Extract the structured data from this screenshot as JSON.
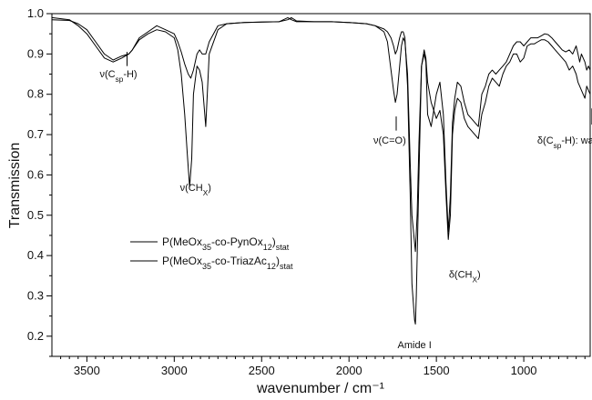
{
  "chart_data": {
    "type": "line",
    "xlabel": "wavenumber / cm⁻¹",
    "ylabel": "Transmission",
    "xlim": [
      3700,
      620
    ],
    "ylim": [
      0.15,
      1.0
    ],
    "x_reversed": true,
    "x_ticks": [
      3500,
      3000,
      2500,
      2000,
      1500,
      1000
    ],
    "y_ticks": [
      0.2,
      0.3,
      0.4,
      0.5,
      0.6,
      0.7,
      0.8,
      0.9,
      1.0
    ],
    "grid": false,
    "legend": "center-left",
    "series": [
      {
        "name": "P(MeOx35-co-PynOx12)stat",
        "label_parts": [
          "P(MeOx",
          "35",
          "-co-PynOx",
          "12",
          ")",
          "stat"
        ],
        "x": [
          3700,
          3600,
          3550,
          3500,
          3450,
          3400,
          3350,
          3300,
          3260,
          3240,
          3200,
          3150,
          3100,
          3050,
          3000,
          2980,
          2960,
          2940,
          2920,
          2905,
          2890,
          2870,
          2855,
          2840,
          2820,
          2800,
          2750,
          2700,
          2600,
          2500,
          2400,
          2350,
          2330,
          2300,
          2200,
          2100,
          2000,
          1900,
          1850,
          1800,
          1780,
          1760,
          1745,
          1735,
          1725,
          1710,
          1700,
          1690,
          1680,
          1665,
          1650,
          1640,
          1620,
          1610,
          1600,
          1585,
          1570,
          1560,
          1550,
          1530,
          1500,
          1480,
          1460,
          1445,
          1432,
          1420,
          1408,
          1395,
          1380,
          1360,
          1340,
          1320,
          1300,
          1280,
          1260,
          1240,
          1220,
          1200,
          1180,
          1160,
          1140,
          1120,
          1100,
          1080,
          1060,
          1040,
          1020,
          1000,
          980,
          960,
          940,
          920,
          900,
          880,
          860,
          840,
          820,
          800,
          780,
          760,
          740,
          720,
          700,
          690,
          680,
          670,
          660,
          650,
          640,
          630,
          620
        ],
        "y": [
          0.985,
          0.983,
          0.975,
          0.96,
          0.93,
          0.9,
          0.885,
          0.895,
          0.9,
          0.91,
          0.94,
          0.955,
          0.97,
          0.96,
          0.95,
          0.93,
          0.905,
          0.875,
          0.85,
          0.84,
          0.86,
          0.9,
          0.91,
          0.9,
          0.9,
          0.93,
          0.97,
          0.975,
          0.978,
          0.979,
          0.98,
          0.99,
          0.985,
          0.98,
          0.98,
          0.98,
          0.978,
          0.975,
          0.97,
          0.955,
          0.93,
          0.86,
          0.81,
          0.78,
          0.8,
          0.87,
          0.92,
          0.94,
          0.93,
          0.85,
          0.63,
          0.5,
          0.41,
          0.5,
          0.68,
          0.87,
          0.9,
          0.88,
          0.75,
          0.72,
          0.8,
          0.83,
          0.75,
          0.58,
          0.46,
          0.55,
          0.73,
          0.79,
          0.83,
          0.82,
          0.78,
          0.75,
          0.74,
          0.73,
          0.72,
          0.8,
          0.82,
          0.85,
          0.86,
          0.85,
          0.86,
          0.87,
          0.88,
          0.9,
          0.92,
          0.93,
          0.93,
          0.92,
          0.93,
          0.94,
          0.94,
          0.94,
          0.945,
          0.95,
          0.948,
          0.94,
          0.93,
          0.92,
          0.91,
          0.905,
          0.91,
          0.9,
          0.92,
          0.9,
          0.88,
          0.9,
          0.89,
          0.88,
          0.86,
          0.87,
          0.86
        ]
      },
      {
        "name": "P(MeOx35-co-TriazAc12)stat",
        "label_parts": [
          "P(MeOx",
          "35",
          "-co-TriazAc",
          "12",
          ")",
          "stat"
        ],
        "x": [
          3700,
          3600,
          3550,
          3500,
          3450,
          3400,
          3350,
          3300,
          3260,
          3240,
          3200,
          3150,
          3100,
          3050,
          3000,
          2980,
          2960,
          2940,
          2925,
          2912,
          2900,
          2890,
          2870,
          2855,
          2840,
          2820,
          2800,
          2750,
          2700,
          2600,
          2500,
          2400,
          2350,
          2330,
          2300,
          2200,
          2100,
          2000,
          1900,
          1850,
          1800,
          1780,
          1760,
          1745,
          1735,
          1725,
          1710,
          1700,
          1690,
          1680,
          1665,
          1650,
          1640,
          1625,
          1620,
          1615,
          1600,
          1585,
          1570,
          1560,
          1550,
          1530,
          1500,
          1480,
          1460,
          1445,
          1432,
          1420,
          1408,
          1395,
          1380,
          1360,
          1340,
          1320,
          1300,
          1280,
          1260,
          1240,
          1220,
          1200,
          1180,
          1160,
          1140,
          1120,
          1100,
          1080,
          1060,
          1040,
          1020,
          1000,
          980,
          960,
          940,
          920,
          900,
          880,
          860,
          840,
          820,
          800,
          780,
          760,
          740,
          720,
          700,
          690,
          680,
          670,
          660,
          650,
          640,
          630,
          620
        ],
        "y": [
          0.99,
          0.985,
          0.97,
          0.95,
          0.92,
          0.89,
          0.88,
          0.89,
          0.9,
          0.91,
          0.935,
          0.95,
          0.96,
          0.955,
          0.94,
          0.91,
          0.85,
          0.75,
          0.65,
          0.57,
          0.64,
          0.8,
          0.87,
          0.86,
          0.83,
          0.72,
          0.9,
          0.96,
          0.975,
          0.978,
          0.979,
          0.98,
          0.985,
          0.99,
          0.982,
          0.98,
          0.98,
          0.978,
          0.975,
          0.97,
          0.962,
          0.955,
          0.94,
          0.92,
          0.9,
          0.91,
          0.94,
          0.955,
          0.955,
          0.94,
          0.82,
          0.55,
          0.33,
          0.24,
          0.23,
          0.3,
          0.6,
          0.87,
          0.91,
          0.89,
          0.83,
          0.78,
          0.74,
          0.76,
          0.7,
          0.55,
          0.44,
          0.5,
          0.7,
          0.76,
          0.79,
          0.78,
          0.74,
          0.72,
          0.71,
          0.7,
          0.69,
          0.75,
          0.78,
          0.82,
          0.84,
          0.83,
          0.82,
          0.85,
          0.87,
          0.88,
          0.9,
          0.9,
          0.88,
          0.89,
          0.92,
          0.925,
          0.925,
          0.93,
          0.935,
          0.935,
          0.93,
          0.92,
          0.91,
          0.9,
          0.89,
          0.88,
          0.86,
          0.87,
          0.85,
          0.83,
          0.82,
          0.81,
          0.8,
          0.79,
          0.82,
          0.81,
          0.8
        ]
      }
    ],
    "annotations": [
      {
        "parts": [
          "ν(C",
          "sp",
          "-H)"
        ],
        "x": 3270,
        "y": 0.875
      },
      {
        "parts": [
          "ν(CH",
          "X",
          ")"
        ],
        "x": 2915,
        "y": 0.605
      },
      {
        "parts": [
          "ν(C=O)"
        ],
        "x": 1730,
        "y": 0.695
      },
      {
        "parts": [
          "Amide I"
        ],
        "x": 1625,
        "y": 0.19
      },
      {
        "parts": [
          "δ(CH",
          "X",
          ")"
        ],
        "x": 1390,
        "y": 0.37
      },
      {
        "parts": [
          "δ(C",
          "sp",
          "-H): wag"
        ],
        "x": 610,
        "y": 0.695
      }
    ]
  }
}
